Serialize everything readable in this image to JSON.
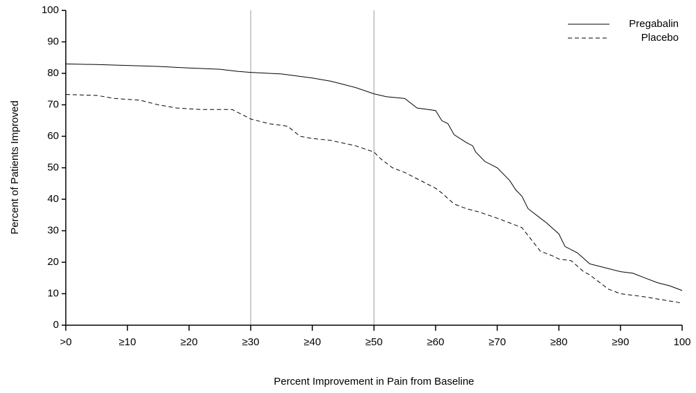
{
  "chart_data": {
    "type": "line",
    "xlabel": "Percent Improvement in Pain from Baseline",
    "ylabel": "Percent of Patients Improved",
    "xlim": [
      0,
      100
    ],
    "ylim": [
      0,
      100
    ],
    "xticks": [
      {
        "value": 0,
        "label": ">0"
      },
      {
        "value": 10,
        "label": "≥10"
      },
      {
        "value": 20,
        "label": "≥20"
      },
      {
        "value": 30,
        "label": "≥30"
      },
      {
        "value": 40,
        "label": "≥40"
      },
      {
        "value": 50,
        "label": "≥50"
      },
      {
        "value": 60,
        "label": "≥60"
      },
      {
        "value": 70,
        "label": "≥70"
      },
      {
        "value": 80,
        "label": "≥80"
      },
      {
        "value": 90,
        "label": "≥90"
      },
      100
    ],
    "yticks": [
      0,
      10,
      20,
      30,
      40,
      50,
      60,
      70,
      80,
      90,
      100
    ],
    "vlines": [
      30,
      50
    ],
    "legend": "upper right",
    "series": [
      {
        "name": "Pregabalin",
        "color": "#000000",
        "dash": "solid",
        "x": [
          0,
          5,
          10,
          15,
          20,
          25,
          28,
          30,
          35,
          40,
          43,
          45,
          47,
          50,
          52,
          55,
          57,
          60,
          61,
          62,
          63,
          65,
          66,
          66.5,
          68,
          70,
          72,
          73,
          74,
          75,
          77,
          78,
          80,
          81,
          83,
          85,
          88,
          90,
          92,
          94,
          96,
          98,
          100
        ],
        "values": [
          83,
          82.8,
          82.5,
          82.2,
          81.7,
          81.3,
          80.6,
          80.3,
          79.8,
          78.5,
          77.5,
          76.5,
          75.5,
          73.5,
          72.6,
          72,
          69,
          68.2,
          65,
          64,
          60.5,
          58,
          57,
          55,
          52,
          50,
          46,
          43,
          41,
          37,
          34,
          32.5,
          29,
          25,
          23,
          19.5,
          18,
          17,
          16.5,
          15,
          13.5,
          12.5,
          11
        ]
      },
      {
        "name": "Placebo",
        "color": "#000000",
        "dash": "dashed",
        "x": [
          0,
          5,
          8,
          12,
          15,
          18,
          22,
          27,
          30,
          33,
          36,
          38,
          40,
          43,
          47,
          50,
          51,
          53,
          55,
          58,
          60,
          61,
          63,
          65,
          67,
          70,
          72,
          74,
          76,
          77,
          79,
          80,
          82,
          84,
          85,
          88,
          90,
          92,
          94,
          97,
          100
        ],
        "values": [
          73.3,
          73,
          72,
          71.5,
          70,
          69,
          68.5,
          68.5,
          65.5,
          64,
          63.2,
          60,
          59.3,
          58.7,
          57,
          55,
          53,
          50,
          48.5,
          45.5,
          43.5,
          42,
          38.5,
          37,
          36,
          34,
          32.5,
          31,
          26,
          23.5,
          22,
          21,
          20.5,
          17,
          16,
          11.5,
          10,
          9.5,
          9,
          8,
          7
        ]
      }
    ]
  }
}
